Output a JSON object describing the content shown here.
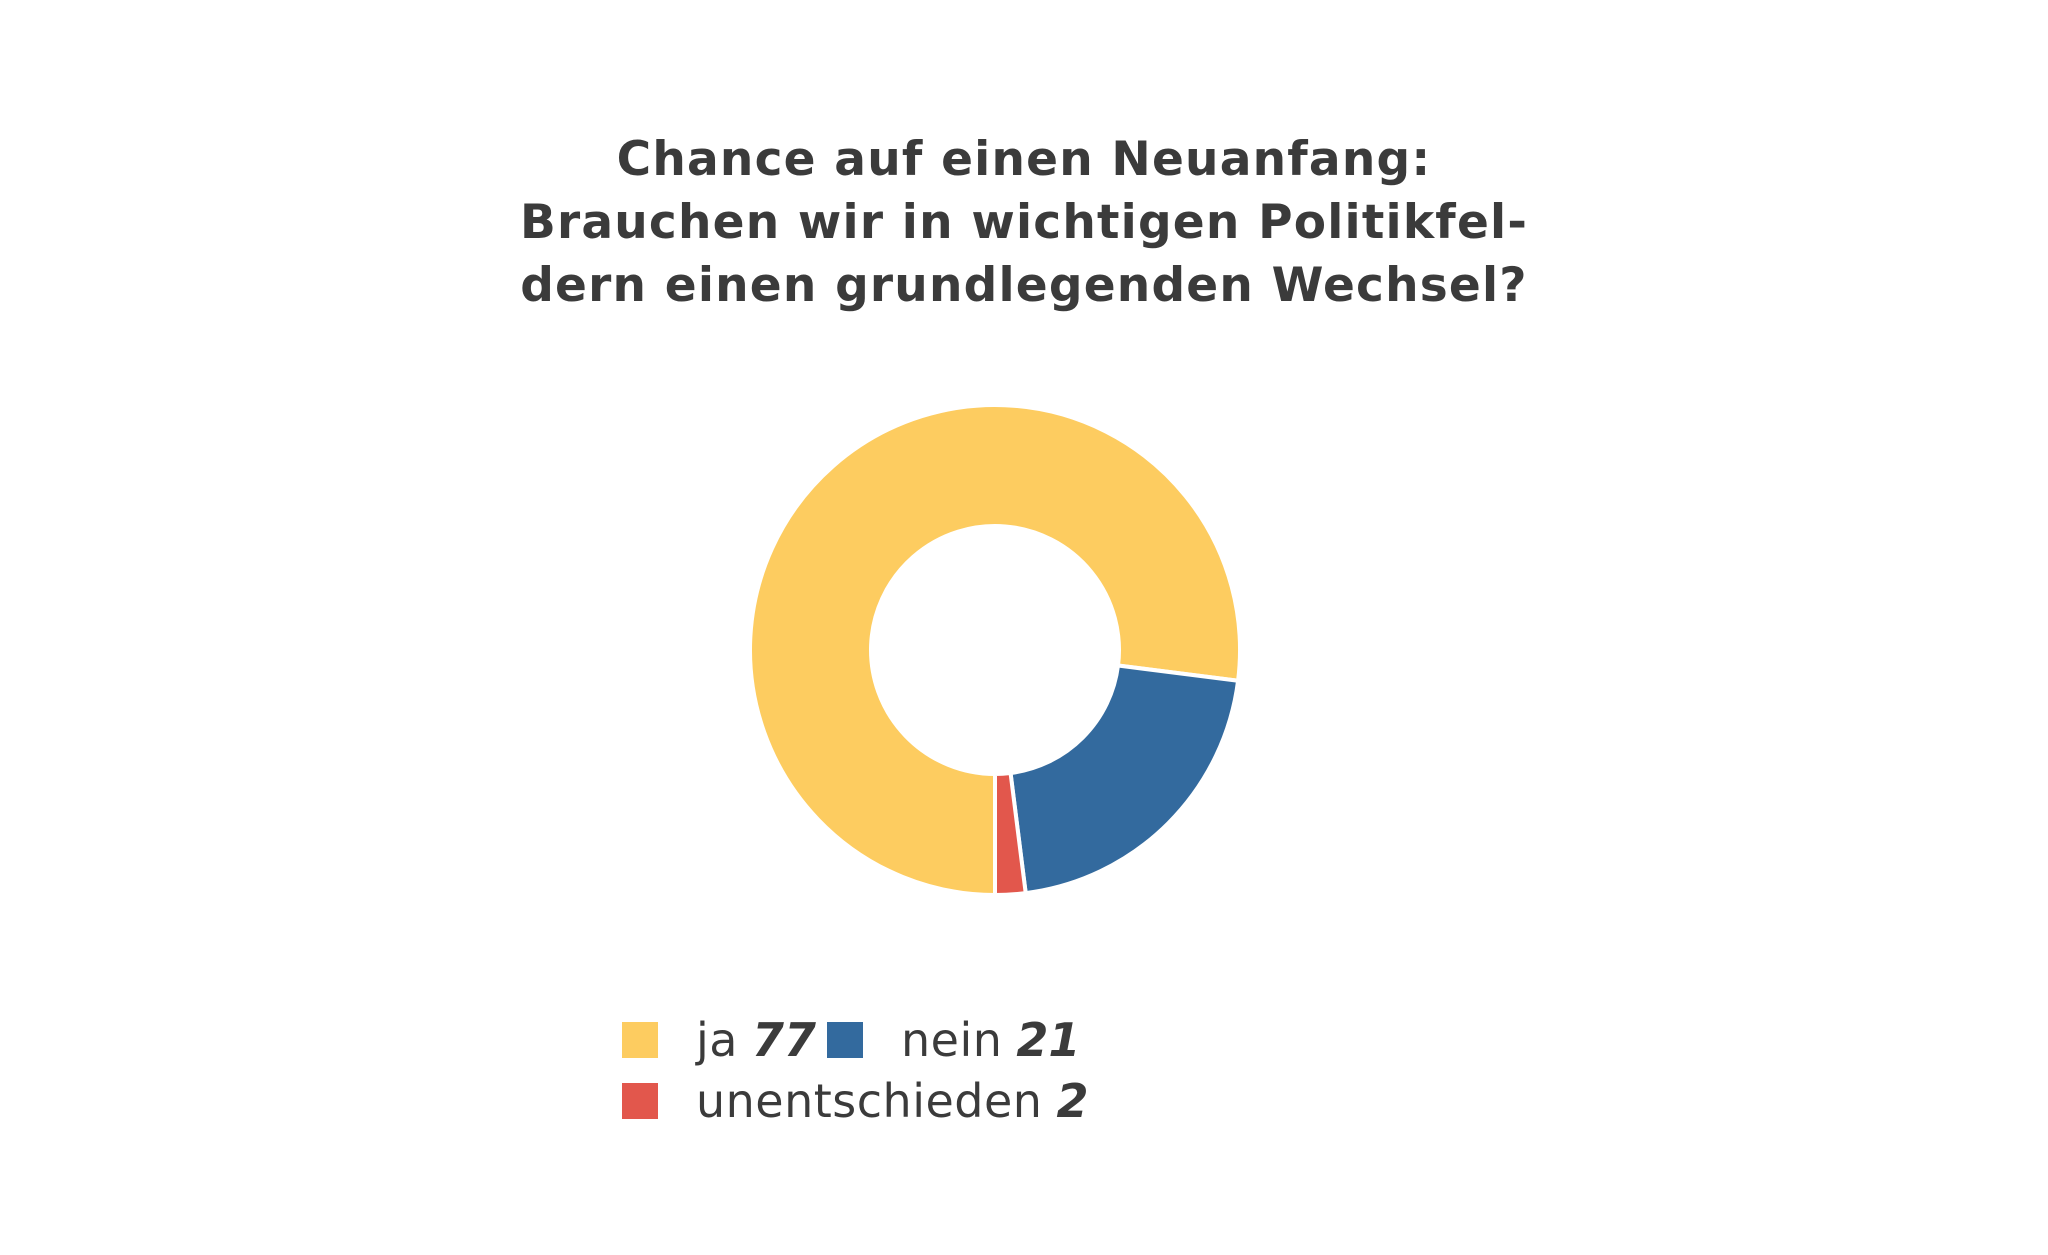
{
  "chart_data": {
    "type": "pie",
    "title_lines": [
      "Chance auf einen Neuanfang:",
      "Brauchen wir in wichtigen Politikfel-",
      "dern einen grundlegenden Wechsel?"
    ],
    "categories": [
      "ja",
      "nein",
      "unentschieden"
    ],
    "values": [
      77,
      21,
      2
    ],
    "colors": [
      "#FDCC60",
      "#336A9E",
      "#E2574C"
    ],
    "donut": true,
    "start": "bottom, clockwise from ja to the left",
    "legend": {
      "placement": "bottom",
      "items": [
        {
          "label": "ja",
          "value": "77",
          "color": "#FDCC60"
        },
        {
          "label": "nein",
          "value": "21",
          "color": "#336A9E"
        },
        {
          "label": "unentschieden",
          "value": "2",
          "color": "#E2574C"
        }
      ]
    }
  }
}
